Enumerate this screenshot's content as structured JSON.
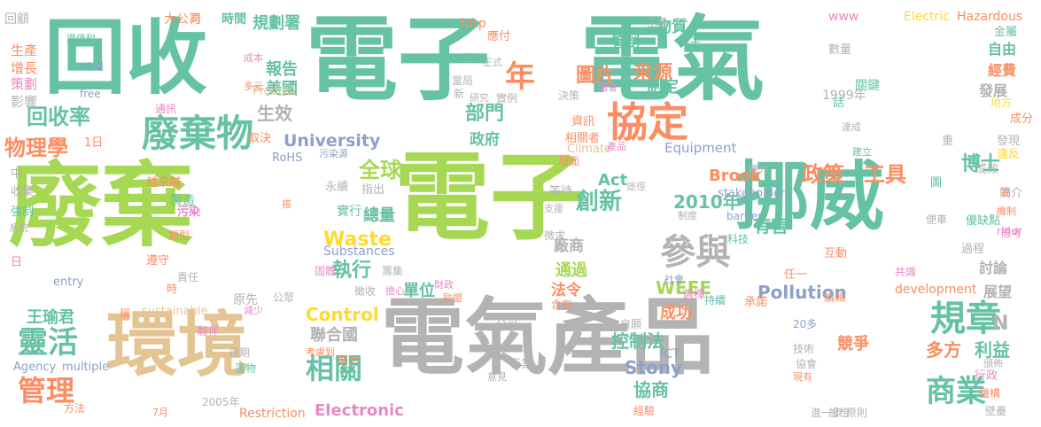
{
  "palette": {
    "green": "#66c2a5",
    "lime": "#a6d854",
    "orange": "#fc8d62",
    "gray": "#b3b3b3",
    "tan": "#e5c494",
    "blue": "#8da0cb",
    "pink": "#e78ac3",
    "yellow": "#ffd92f"
  },
  "words": [
    {
      "text": "廢棄",
      "color": "#a6d854"
    },
    {
      "text": "電子",
      "color": "#66c2a5"
    },
    {
      "text": "電氣",
      "color": "#66c2a5"
    },
    {
      "text": "回收",
      "color": "#66c2a5"
    },
    {
      "text": "電子",
      "color": "#a6d854"
    },
    {
      "text": "電氣產品",
      "color": "#b3b3b3"
    },
    {
      "text": "挪威",
      "color": "#66c2a5"
    },
    {
      "text": "環境",
      "color": "#e5c494"
    },
    {
      "text": "廢棄物",
      "color": "#66c2a5"
    },
    {
      "text": "協定",
      "color": "#fc8d62"
    },
    {
      "text": "規章",
      "color": "#66c2a5"
    },
    {
      "text": "參與",
      "color": "#b3b3b3"
    },
    {
      "text": "年",
      "color": "#fc8d62"
    },
    {
      "text": "靈活",
      "color": "#66c2a5"
    },
    {
      "text": "管理",
      "color": "#fc8d62"
    },
    {
      "text": "相關",
      "color": "#66c2a5"
    },
    {
      "text": "商業",
      "color": "#66c2a5"
    },
    {
      "text": "回收率",
      "color": "#66c2a5"
    },
    {
      "text": "物理學",
      "color": "#fc8d62"
    },
    {
      "text": "全球",
      "color": "#a6d854"
    },
    {
      "text": "創新",
      "color": "#66c2a5"
    },
    {
      "text": "政策",
      "color": "#fc8d62"
    },
    {
      "text": "工具",
      "color": "#fc8d62"
    },
    {
      "text": "博士",
      "color": "#66c2a5"
    },
    {
      "text": "執行",
      "color": "#66c2a5"
    },
    {
      "text": "Waste",
      "color": "#ffd92f"
    },
    {
      "text": "Control",
      "color": "#ffd92f"
    },
    {
      "text": "2010年",
      "color": "#66c2a5"
    },
    {
      "text": "多方",
      "color": "#fc8d62"
    },
    {
      "text": "利益",
      "color": "#66c2a5"
    },
    {
      "text": "圖片",
      "color": "#fc8d62"
    },
    {
      "text": "來源",
      "color": "#fc8d62"
    },
    {
      "text": "部門",
      "color": "#66c2a5"
    },
    {
      "text": "報告",
      "color": "#66c2a5"
    },
    {
      "text": "美國",
      "color": "#66c2a5"
    },
    {
      "text": "生效",
      "color": "#b3b3b3"
    },
    {
      "text": "University",
      "color": "#8da0cb"
    },
    {
      "text": "規劃署",
      "color": "#66c2a5"
    },
    {
      "text": "物質",
      "color": "#66c2a5"
    },
    {
      "text": "管制",
      "color": "#66c2a5"
    },
    {
      "text": "制定",
      "color": "#66c2a5"
    },
    {
      "text": "發展",
      "color": "#b3b3b3"
    },
    {
      "text": "自由",
      "color": "#66c2a5"
    },
    {
      "text": "經費",
      "color": "#fc8d62"
    },
    {
      "text": "有害",
      "color": "#66c2a5"
    },
    {
      "text": "Act",
      "color": "#66c2a5"
    },
    {
      "text": "Brook",
      "color": "#fc8d62"
    },
    {
      "text": "Stony",
      "color": "#8da0cb"
    },
    {
      "text": "協商",
      "color": "#66c2a5"
    },
    {
      "text": "控制法",
      "color": "#66c2a5"
    },
    {
      "text": "成功",
      "color": "#fc8d62"
    },
    {
      "text": "WEEE",
      "color": "#a6d854"
    },
    {
      "text": "Pollution",
      "color": "#8da0cb"
    },
    {
      "text": "Electronic",
      "color": "#e78ac3"
    },
    {
      "text": "聯合國",
      "color": "#b3b3b3"
    },
    {
      "text": "總量",
      "color": "#66c2a5"
    },
    {
      "text": "王瑜君",
      "color": "#66c2a5"
    },
    {
      "text": "政府",
      "color": "#66c2a5"
    },
    {
      "text": "單位",
      "color": "#66c2a5"
    },
    {
      "text": "通過",
      "color": "#a6d854"
    },
    {
      "text": "廠商",
      "color": "#b3b3b3"
    },
    {
      "text": "法令",
      "color": "#fc8d62"
    },
    {
      "text": "展望",
      "color": "#b3b3b3"
    },
    {
      "text": "討論",
      "color": "#b3b3b3"
    },
    {
      "text": "競爭",
      "color": "#fc8d62"
    },
    {
      "text": "Equipment",
      "color": "#8da0cb"
    },
    {
      "text": "Substances",
      "color": "#8da0cb"
    },
    {
      "text": "Restriction",
      "color": "#fc8d62"
    },
    {
      "text": "sustainable",
      "color": "#e5c494"
    },
    {
      "text": "stakeholders",
      "color": "#8da0cb"
    },
    {
      "text": "development",
      "color": "#fc8d62"
    },
    {
      "text": "Hazardous",
      "color": "#fc8d62"
    },
    {
      "text": "Electric",
      "color": "#ffd92f"
    },
    {
      "text": "http",
      "color": "#fc8d62"
    },
    {
      "text": "www",
      "color": "#e78ac3"
    },
    {
      "text": "Product",
      "color": "#e5c494"
    },
    {
      "text": "Climate",
      "color": "#e5c494"
    },
    {
      "text": "RoHS",
      "color": "#8da0cb"
    },
    {
      "text": "Agency",
      "color": "#8da0cb"
    },
    {
      "text": "multiple",
      "color": "#8da0cb"
    },
    {
      "text": "barrier",
      "color": "#8da0cb"
    },
    {
      "text": "rider",
      "color": "#e78ac3"
    },
    {
      "text": "entry",
      "color": "#8da0cb"
    },
    {
      "text": "free",
      "color": "#8da0cb"
    },
    {
      "text": "ICT",
      "color": "#8da0cb"
    },
    {
      "text": "時間",
      "color": "#66c2a5"
    },
    {
      "text": "大公司",
      "color": "#fc8d62"
    },
    {
      "text": "回顧",
      "color": "#b3b3b3"
    },
    {
      "text": "增值稅",
      "color": "#66c2a5"
    },
    {
      "text": "生產",
      "color": "#fc8d62"
    },
    {
      "text": "增長",
      "color": "#fc8d62"
    },
    {
      "text": "策劃",
      "color": "#e78ac3"
    },
    {
      "text": "影響",
      "color": "#b3b3b3"
    },
    {
      "text": "市場",
      "color": "#8da0cb"
    },
    {
      "text": "工具",
      "color": "#b3b3b3"
    },
    {
      "text": "應付",
      "color": "#fc8d62"
    },
    {
      "text": "例子",
      "color": "#66c2a5"
    },
    {
      "text": "數量",
      "color": "#b3b3b3"
    },
    {
      "text": "金屬",
      "color": "#66c2a5"
    },
    {
      "text": "關鍵",
      "color": "#66c2a5"
    },
    {
      "text": "成本",
      "color": "#e78ac3"
    },
    {
      "text": "多元",
      "color": "#fc8d62"
    },
    {
      "text": "當局",
      "color": "#b3b3b3"
    },
    {
      "text": "正式",
      "color": "#b3b3b3"
    },
    {
      "text": "研究",
      "color": "#b3b3b3"
    },
    {
      "text": "實例",
      "color": "#b3b3b3"
    },
    {
      "text": "決策",
      "color": "#b3b3b3"
    },
    {
      "text": "國會",
      "color": "#e78ac3"
    },
    {
      "text": "1999年",
      "color": "#b3b3b3"
    },
    {
      "text": "地方",
      "color": "#ffd92f"
    },
    {
      "text": "成分",
      "color": "#fc8d62"
    },
    {
      "text": "達成",
      "color": "#b3b3b3"
    },
    {
      "text": "發現",
      "color": "#b3b3b3"
    },
    {
      "text": "違反",
      "color": "#ffd92f"
    },
    {
      "text": "通訊",
      "color": "#e78ac3"
    },
    {
      "text": "取決",
      "color": "#fc8d62"
    },
    {
      "text": "1日",
      "color": "#fc8d62"
    },
    {
      "text": "資訊",
      "color": "#fc8d62"
    },
    {
      "text": "相關者",
      "color": "#fc8d62"
    },
    {
      "text": "產品",
      "color": "#e78ac3"
    },
    {
      "text": "污染源",
      "color": "#8da0cb"
    },
    {
      "text": "中",
      "color": "#b3b3b3"
    },
    {
      "text": "收集",
      "color": "#b3b3b3"
    },
    {
      "text": "強制",
      "color": "#66c2a5"
    },
    {
      "text": "系統",
      "color": "#b3b3b3"
    },
    {
      "text": "越來越",
      "color": "#fc8d62"
    },
    {
      "text": "製造",
      "color": "#66c2a5"
    },
    {
      "text": "永續",
      "color": "#b3b3b3"
    },
    {
      "text": "指出",
      "color": "#b3b3b3"
    },
    {
      "text": "等待",
      "color": "#b3b3b3"
    },
    {
      "text": "途徑",
      "color": "#b3b3b3"
    },
    {
      "text": "權力",
      "color": "#b3b3b3"
    },
    {
      "text": "建立",
      "color": "#66c2a5"
    },
    {
      "text": "成效",
      "color": "#b3b3b3"
    },
    {
      "text": "簡介",
      "color": "#b3b3b3"
    },
    {
      "text": "機制",
      "color": "#fc8d62"
    },
    {
      "text": "思考",
      "color": "#e78ac3"
    },
    {
      "text": "優缺點",
      "color": "#66c2a5"
    },
    {
      "text": "過程",
      "color": "#b3b3b3"
    },
    {
      "text": "便車",
      "color": "#b3b3b3"
    },
    {
      "text": "互動",
      "color": "#fc8d62"
    },
    {
      "text": "共識",
      "color": "#e78ac3"
    },
    {
      "text": "編輯",
      "color": "#fc8d62"
    },
    {
      "text": "任一",
      "color": "#fc8d62"
    },
    {
      "text": "科技",
      "color": "#66c2a5"
    },
    {
      "text": "污染",
      "color": "#e78ac3"
    },
    {
      "text": "遵守",
      "color": "#fc8d62"
    },
    {
      "text": "類型",
      "color": "#fc8d62"
    },
    {
      "text": "責任",
      "color": "#b3b3b3"
    },
    {
      "text": "籌集",
      "color": "#b3b3b3"
    },
    {
      "text": "固體",
      "color": "#e78ac3"
    },
    {
      "text": "徵收",
      "color": "#b3b3b3"
    },
    {
      "text": "擔心",
      "color": "#e78ac3"
    },
    {
      "text": "財政",
      "color": "#e78ac3"
    },
    {
      "text": "歐盟",
      "color": "#fc8d62"
    },
    {
      "text": "含有",
      "color": "#fc8d62"
    },
    {
      "text": "選擇",
      "color": "#e78ac3"
    },
    {
      "text": "社會",
      "color": "#8da0cb"
    },
    {
      "text": "持續",
      "color": "#66c2a5"
    },
    {
      "text": "承諾",
      "color": "#fc8d62"
    },
    {
      "text": "20多",
      "color": "#8da0cb"
    },
    {
      "text": "技術",
      "color": "#b3b3b3"
    },
    {
      "text": "協會",
      "color": "#b3b3b3"
    },
    {
      "text": "現有",
      "color": "#fc8d62"
    },
    {
      "text": "行政",
      "color": "#e78ac3"
    },
    {
      "text": "頒佈",
      "color": "#b3b3b3"
    },
    {
      "text": "機構",
      "color": "#fc8d62"
    },
    {
      "text": "壁壘",
      "color": "#b3b3b3"
    },
    {
      "text": "原則",
      "color": "#b3b3b3"
    },
    {
      "text": "設想",
      "color": "#b3b3b3"
    },
    {
      "text": "進一步",
      "color": "#b3b3b3"
    },
    {
      "text": "經驗",
      "color": "#fc8d62"
    },
    {
      "text": "行業",
      "color": "#b3b3b3"
    },
    {
      "text": "意見",
      "color": "#b3b3b3"
    },
    {
      "text": "公司",
      "color": "#b3b3b3"
    },
    {
      "text": "自願",
      "color": "#b3b3b3"
    },
    {
      "text": "公眾",
      "color": "#b3b3b3"
    },
    {
      "text": "考慮到",
      "color": "#fc8d62"
    },
    {
      "text": "努力",
      "color": "#fc8d62"
    },
    {
      "text": "夥伴",
      "color": "#e78ac3"
    },
    {
      "text": "日期",
      "color": "#b3b3b3"
    },
    {
      "text": "蓬物",
      "color": "#66c2a5"
    },
    {
      "text": "方法",
      "color": "#fc8d62"
    },
    {
      "text": "2005年",
      "color": "#b3b3b3"
    },
    {
      "text": "7月",
      "color": "#fc8d62"
    },
    {
      "text": "實行",
      "color": "#66c2a5"
    },
    {
      "text": "稱",
      "color": "#fc8d62"
    },
    {
      "text": "原先",
      "color": "#b3b3b3"
    },
    {
      "text": "減少",
      "color": "#e78ac3"
    },
    {
      "text": "搭",
      "color": "#fc8d62"
    },
    {
      "text": "新",
      "color": "#b3b3b3"
    },
    {
      "text": "三",
      "color": "#e78ac3"
    },
    {
      "text": "話",
      "color": "#66c2a5"
    },
    {
      "text": "重",
      "color": "#b3b3b3"
    },
    {
      "text": "高",
      "color": "#fc8d62"
    },
    {
      "text": "圖",
      "color": "#66c2a5"
    },
    {
      "text": "N",
      "color": "#b3b3b3"
    },
    {
      "text": "月",
      "color": "#fc8d62"
    },
    {
      "text": "日",
      "color": "#e78ac3"
    },
    {
      "text": "時",
      "color": "#fc8d62"
    },
    {
      "text": "層面",
      "color": "#fc8d62"
    },
    {
      "text": "微求",
      "color": "#b3b3b3"
    },
    {
      "text": "支援",
      "color": "#b3b3b3"
    },
    {
      "text": "制度",
      "color": "#b3b3b3"
    }
  ]
}
